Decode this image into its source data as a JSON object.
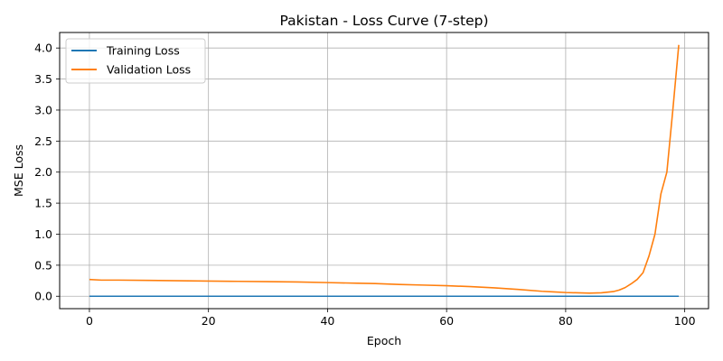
{
  "chart_data": {
    "type": "line",
    "title": "Pakistan - Loss Curve (7-step)",
    "xlabel": "Epoch",
    "ylabel": "MSE Loss",
    "xlim": [
      -5,
      104
    ],
    "ylim": [
      -0.2,
      4.25
    ],
    "xticks": [
      0,
      20,
      40,
      60,
      80,
      100
    ],
    "yticks": [
      0.0,
      0.5,
      1.0,
      1.5,
      2.0,
      2.5,
      3.0,
      3.5,
      4.0
    ],
    "xtick_labels": [
      "0",
      "20",
      "40",
      "60",
      "80",
      "100"
    ],
    "ytick_labels": [
      "0.0",
      "0.5",
      "1.0",
      "1.5",
      "2.0",
      "2.5",
      "3.0",
      "3.5",
      "4.0"
    ],
    "grid": true,
    "legend_position": "top-left",
    "series": [
      {
        "name": "Training Loss",
        "color": "#1f77b4",
        "x": [
          0,
          99
        ],
        "y": [
          0.0,
          0.0
        ]
      },
      {
        "name": "Validation Loss",
        "color": "#ff7f0e",
        "x": [
          0,
          2,
          5,
          10,
          15,
          20,
          25,
          30,
          35,
          40,
          45,
          48,
          52,
          56,
          60,
          64,
          68,
          72,
          76,
          78,
          80,
          82,
          84,
          86,
          88,
          89,
          90,
          91,
          92,
          93,
          94,
          95,
          96,
          97,
          98,
          99
        ],
        "y": [
          0.27,
          0.26,
          0.26,
          0.255,
          0.25,
          0.245,
          0.24,
          0.235,
          0.23,
          0.22,
          0.21,
          0.205,
          0.19,
          0.18,
          0.17,
          0.155,
          0.135,
          0.11,
          0.08,
          0.07,
          0.06,
          0.055,
          0.05,
          0.055,
          0.075,
          0.1,
          0.14,
          0.2,
          0.27,
          0.38,
          0.65,
          1.0,
          1.65,
          2.0,
          3.0,
          4.05
        ]
      }
    ]
  }
}
